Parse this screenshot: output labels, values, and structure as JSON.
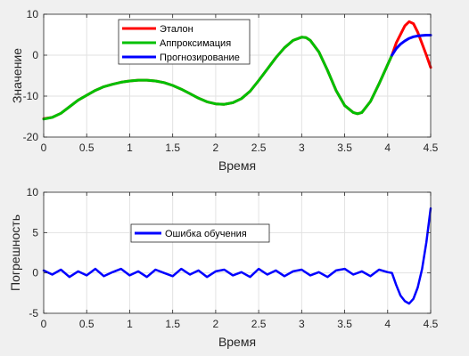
{
  "chart_data": [
    {
      "type": "line",
      "xlabel": "Время",
      "ylabel": "Значение",
      "xlim": [
        0,
        4.5
      ],
      "ylim": [
        -20,
        10
      ],
      "xticks": [
        0,
        0.5,
        1,
        1.5,
        2,
        2.5,
        3,
        3.5,
        4,
        4.5
      ],
      "yticks": [
        -20,
        -10,
        0,
        10
      ],
      "xtick_labels": [
        "0",
        "0.5",
        "1",
        "1.5",
        "2",
        "2.5",
        "3",
        "3.5",
        "4",
        "4.5"
      ],
      "ytick_labels": [
        "-20",
        "-10",
        "0",
        "10"
      ],
      "grid": true,
      "legend_position": "top-left",
      "series": [
        {
          "name": "Эталон",
          "color": "#ff0000",
          "x": [
            0,
            0.1,
            0.2,
            0.3,
            0.4,
            0.5,
            0.6,
            0.7,
            0.8,
            0.9,
            1.0,
            1.1,
            1.2,
            1.3,
            1.4,
            1.5,
            1.6,
            1.7,
            1.8,
            1.9,
            2.0,
            2.1,
            2.2,
            2.3,
            2.4,
            2.5,
            2.6,
            2.7,
            2.8,
            2.9,
            3.0,
            3.05,
            3.1,
            3.2,
            3.3,
            3.4,
            3.5,
            3.6,
            3.65,
            3.7,
            3.8,
            3.9,
            4.0,
            4.05,
            4.1,
            4.2,
            4.25,
            4.3,
            4.35,
            4.4,
            4.45,
            4.5
          ],
          "y": [
            -15.5,
            -15.2,
            -14.2,
            -12.6,
            -11,
            -9.8,
            -8.6,
            -7.7,
            -7.1,
            -6.6,
            -6.3,
            -6.1,
            -6.1,
            -6.3,
            -6.7,
            -7.4,
            -8.3,
            -9.4,
            -10.5,
            -11.4,
            -11.9,
            -12.0,
            -11.6,
            -10.6,
            -8.8,
            -6.2,
            -3.4,
            -0.6,
            1.8,
            3.6,
            4.4,
            4.3,
            3.6,
            0.8,
            -3.7,
            -8.6,
            -12.3,
            -14.0,
            -14.3,
            -14.0,
            -11.3,
            -7.0,
            -2.3,
            0.0,
            3.0,
            7.2,
            8.2,
            7.7,
            5.6,
            2.8,
            0.0,
            -3.0
          ]
        },
        {
          "name": "Аппроксимация",
          "color": "#00c000",
          "x": [
            0,
            0.1,
            0.2,
            0.3,
            0.4,
            0.5,
            0.6,
            0.7,
            0.8,
            0.9,
            1.0,
            1.1,
            1.2,
            1.3,
            1.4,
            1.5,
            1.6,
            1.7,
            1.8,
            1.9,
            2.0,
            2.1,
            2.2,
            2.3,
            2.4,
            2.5,
            2.6,
            2.7,
            2.8,
            2.9,
            3.0,
            3.05,
            3.1,
            3.2,
            3.3,
            3.4,
            3.5,
            3.6,
            3.65,
            3.7,
            3.8,
            3.9,
            4.0,
            4.05
          ],
          "y": [
            -15.6,
            -15.2,
            -14.2,
            -12.6,
            -11,
            -9.8,
            -8.6,
            -7.7,
            -7.1,
            -6.6,
            -6.3,
            -6.1,
            -6.1,
            -6.3,
            -6.7,
            -7.4,
            -8.3,
            -9.4,
            -10.5,
            -11.4,
            -11.9,
            -12.0,
            -11.6,
            -10.6,
            -8.8,
            -6.2,
            -3.4,
            -0.6,
            1.8,
            3.6,
            4.4,
            4.3,
            3.6,
            0.8,
            -3.7,
            -8.6,
            -12.3,
            -14.0,
            -14.3,
            -14.0,
            -11.3,
            -7.0,
            -2.3,
            0.0
          ]
        },
        {
          "name": "Прогнозирование",
          "color": "#0000ff",
          "x": [
            4.05,
            4.1,
            4.15,
            4.2,
            4.25,
            4.3,
            4.35,
            4.4,
            4.45,
            4.5
          ],
          "y": [
            0.0,
            1.6,
            2.7,
            3.5,
            4.1,
            4.5,
            4.7,
            4.8,
            4.9,
            4.9
          ]
        }
      ]
    },
    {
      "type": "line",
      "xlabel": "Время",
      "ylabel": "Погрешность",
      "xlim": [
        0,
        4.5
      ],
      "ylim": [
        -5,
        10
      ],
      "xticks": [
        0,
        0.5,
        1,
        1.5,
        2,
        2.5,
        3,
        3.5,
        4,
        4.5
      ],
      "yticks": [
        -5,
        0,
        5,
        10
      ],
      "xtick_labels": [
        "0",
        "0.5",
        "1",
        "1.5",
        "2",
        "2.5",
        "3",
        "3.5",
        "4",
        "4.5"
      ],
      "ytick_labels": [
        "-5",
        "0",
        "5",
        "10"
      ],
      "grid": true,
      "legend_position": "upper-center",
      "series": [
        {
          "name": "Ошибка обучения",
          "color": "#0000ff",
          "x": [
            0,
            0.1,
            0.2,
            0.3,
            0.4,
            0.5,
            0.6,
            0.7,
            0.8,
            0.9,
            1.0,
            1.1,
            1.2,
            1.3,
            1.4,
            1.5,
            1.6,
            1.7,
            1.8,
            1.9,
            2.0,
            2.1,
            2.2,
            2.3,
            2.4,
            2.5,
            2.6,
            2.7,
            2.8,
            2.9,
            3.0,
            3.1,
            3.2,
            3.3,
            3.4,
            3.5,
            3.6,
            3.7,
            3.8,
            3.9,
            4.0,
            4.05,
            4.1,
            4.15,
            4.2,
            4.25,
            4.3,
            4.35,
            4.4,
            4.45,
            4.5
          ],
          "y": [
            0.3,
            -0.2,
            0.4,
            -0.5,
            0.2,
            -0.3,
            0.5,
            -0.4,
            0.1,
            0.5,
            -0.3,
            0.2,
            -0.5,
            0.4,
            0.0,
            -0.4,
            0.5,
            -0.2,
            0.3,
            -0.5,
            0.2,
            0.4,
            -0.3,
            0.1,
            -0.5,
            0.5,
            -0.2,
            0.3,
            -0.4,
            0.2,
            0.4,
            -0.3,
            0.1,
            -0.5,
            0.3,
            0.5,
            -0.2,
            0.2,
            -0.4,
            0.4,
            0.1,
            0.0,
            -1.5,
            -2.8,
            -3.5,
            -3.8,
            -3.2,
            -1.8,
            0.5,
            3.8,
            8.0
          ]
        }
      ]
    }
  ]
}
